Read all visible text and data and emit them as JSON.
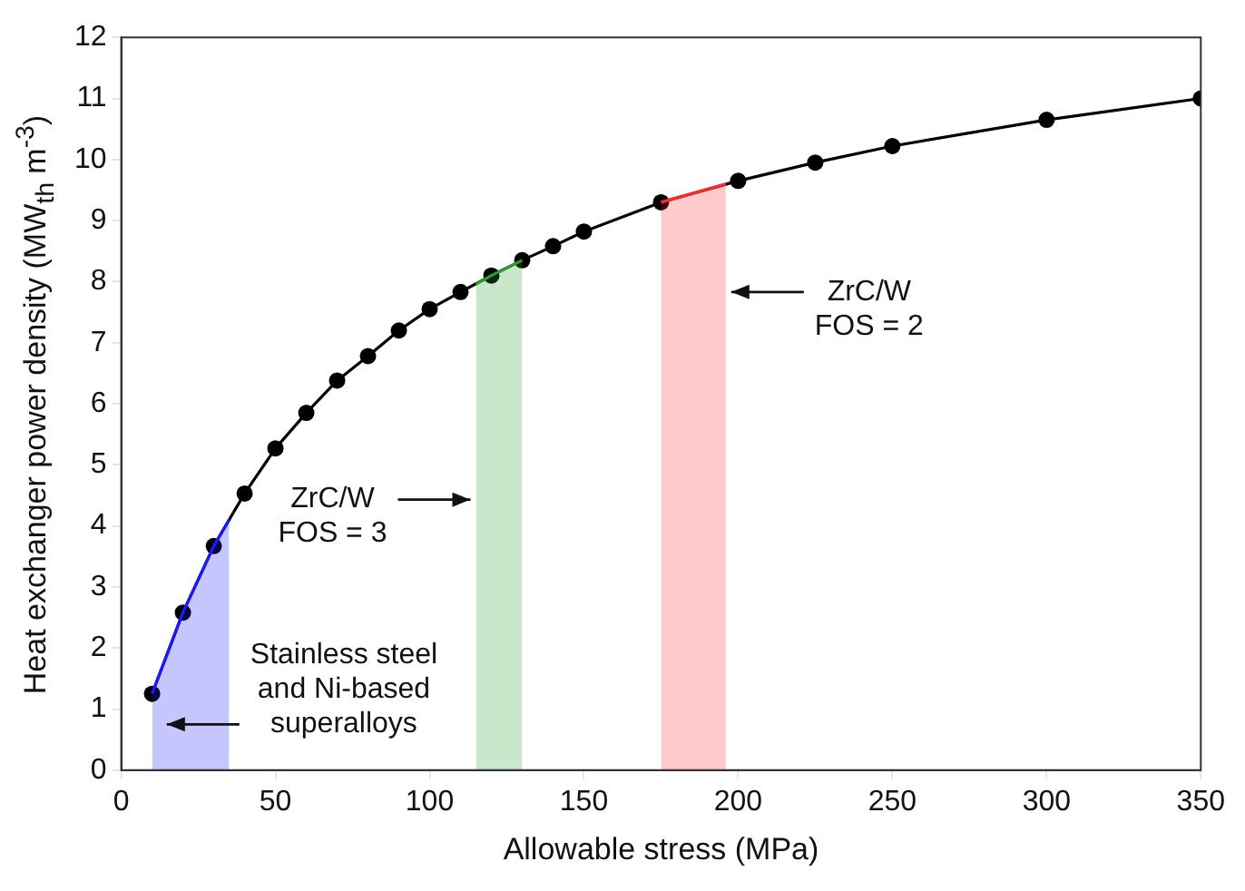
{
  "chart_data": {
    "type": "line",
    "xlabel": "Allowable stress (MPa)",
    "ylabel": "Heat exchanger power density (MW$_{th}$ m$^{-3}$)",
    "x": [
      10,
      20,
      30,
      40,
      50,
      60,
      70,
      80,
      90,
      100,
      110,
      120,
      130,
      140,
      150,
      175,
      200,
      225,
      250,
      300,
      350
    ],
    "series": [
      {
        "color": "#000000",
        "values": [
          1.25,
          2.58,
          3.67,
          4.53,
          5.27,
          5.85,
          6.38,
          6.78,
          7.2,
          7.55,
          7.83,
          8.1,
          8.35,
          8.58,
          8.82,
          9.3,
          9.65,
          9.95,
          10.22,
          10.65,
          11.0
        ]
      },
      {
        "type": "area",
        "marker": "none",
        "color": "#1a1aff",
        "x": [
          10,
          20,
          30,
          35
        ],
        "values": [
          1.25,
          2.58,
          3.67,
          4.1
        ]
      },
      {
        "type": "area",
        "marker": "none",
        "color": "#2e9e2e",
        "x": [
          115,
          120,
          130
        ],
        "values": [
          7.96,
          8.1,
          8.35
        ]
      },
      {
        "type": "area",
        "marker": "none",
        "color": "#ff2a2a",
        "x": [
          175,
          196
        ],
        "values": [
          9.3,
          9.6
        ]
      }
    ],
    "marker": "circle",
    "line_style": "solid",
    "grid": false,
    "legend": false,
    "xlim": [
      0,
      350
    ],
    "xticks": [
      0,
      50,
      100,
      150,
      200,
      250,
      300,
      350
    ],
    "ylim": [
      0,
      12
    ],
    "yticks": [
      0,
      1,
      2,
      3,
      4,
      5,
      6,
      7,
      8,
      9,
      10,
      11,
      12
    ],
    "annotations": [
      "Stainless steel\nand Ni-based\nsuperalloys",
      {
        "text": "ZrC/W\nFOS = 3",
        "x": 115,
        "y": 4.43
      },
      {
        "text": "ZrC/W\nFOS = 2",
        "x": 196,
        "y": 7.83
      }
    ]
  }
}
